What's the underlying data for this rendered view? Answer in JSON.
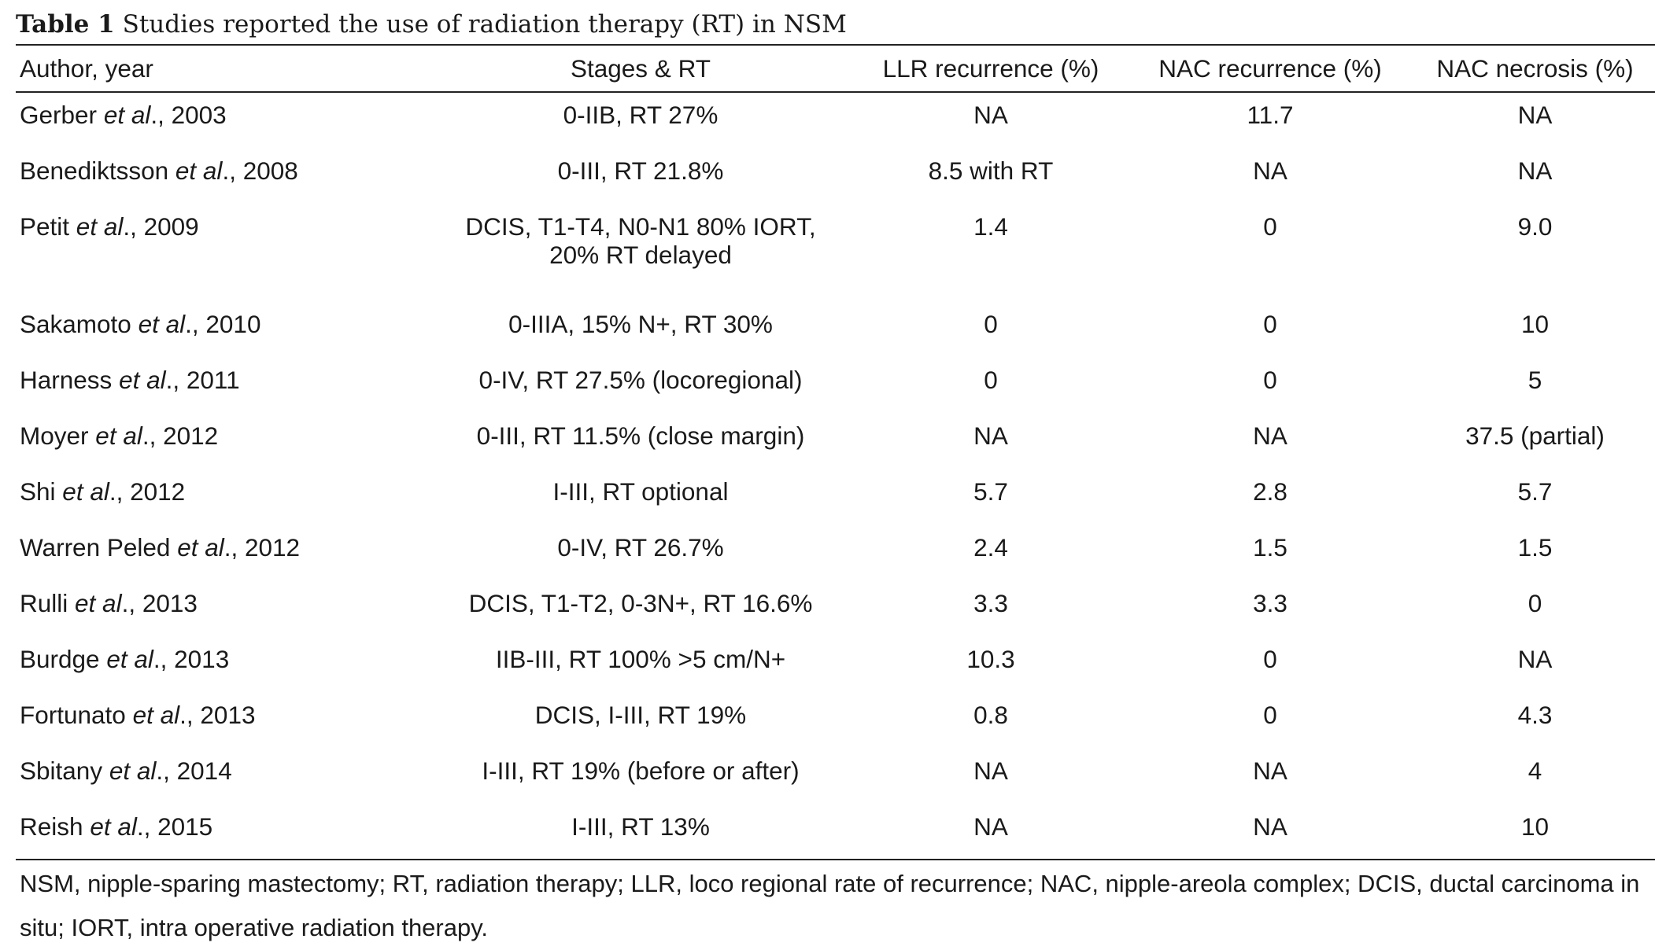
{
  "caption": {
    "label": "Table 1",
    "text": "Studies reported the use of radiation therapy (RT) in NSM"
  },
  "columns": {
    "author": "Author, year",
    "stages": "Stages & RT",
    "llr": "LLR recurrence (%)",
    "nac_recurrence": "NAC recurrence (%)",
    "nac_necrosis": "NAC necrosis (%)"
  },
  "rows": [
    {
      "author": "Gerber",
      "etal": "et al",
      "year": "., 2003",
      "stages": [
        "0-IIB, RT 27%"
      ],
      "llr": "NA",
      "nac_recurrence": "11.7",
      "nac_necrosis": "NA"
    },
    {
      "author": "Benediktsson",
      "etal": "et al",
      "year": "., 2008",
      "stages": [
        "0-III, RT 21.8%"
      ],
      "llr": "8.5 with RT",
      "nac_recurrence": "NA",
      "nac_necrosis": "NA"
    },
    {
      "author": "Petit",
      "etal": "et al",
      "year": "., 2009",
      "stages": [
        "DCIS, T1-T4, N0-N1 80% IORT,",
        "20% RT delayed"
      ],
      "llr": "1.4",
      "nac_recurrence": "0",
      "nac_necrosis": "9.0"
    },
    {
      "author": "Sakamoto",
      "etal": "et al",
      "year": "., 2010",
      "stages": [
        "0-IIIA, 15% N+, RT 30%"
      ],
      "llr": "0",
      "nac_recurrence": "0",
      "nac_necrosis": "10"
    },
    {
      "author": "Harness",
      "etal": "et al",
      "year": "., 2011",
      "stages": [
        "0-IV, RT 27.5% (locoregional)"
      ],
      "llr": "0",
      "nac_recurrence": "0",
      "nac_necrosis": "5"
    },
    {
      "author": "Moyer",
      "etal": "et al",
      "year": "., 2012",
      "stages": [
        "0-III, RT 11.5% (close margin)"
      ],
      "llr": "NA",
      "nac_recurrence": "NA",
      "nac_necrosis": "37.5 (partial)"
    },
    {
      "author": "Shi",
      "etal": "et al",
      "year": "., 2012",
      "stages": [
        "I-III, RT optional"
      ],
      "llr": "5.7",
      "nac_recurrence": "2.8",
      "nac_necrosis": "5.7"
    },
    {
      "author": "Warren Peled",
      "etal": "et al",
      "year": "., 2012",
      "stages": [
        "0-IV, RT 26.7%"
      ],
      "llr": "2.4",
      "nac_recurrence": "1.5",
      "nac_necrosis": "1.5"
    },
    {
      "author": "Rulli",
      "etal": "et al",
      "year": "., 2013",
      "stages": [
        "DCIS, T1-T2, 0-3N+, RT 16.6%"
      ],
      "llr": "3.3",
      "nac_recurrence": "3.3",
      "nac_necrosis": "0"
    },
    {
      "author": "Burdge",
      "etal": "et al",
      "year": "., 2013",
      "stages": [
        "IIB-III, RT 100% >5 cm/N+"
      ],
      "llr": "10.3",
      "nac_recurrence": "0",
      "nac_necrosis": "NA"
    },
    {
      "author": "Fortunato",
      "etal": "et al",
      "year": "., 2013",
      "stages": [
        "DCIS, I-III, RT 19%"
      ],
      "llr": "0.8",
      "nac_recurrence": "0",
      "nac_necrosis": "4.3"
    },
    {
      "author": "Sbitany",
      "etal": "et al",
      "year": "., 2014",
      "stages": [
        "I-III, RT 19% (before or after)"
      ],
      "llr": "NA",
      "nac_recurrence": "NA",
      "nac_necrosis": "4"
    },
    {
      "author": "Reish",
      "etal": "et al",
      "year": "., 2015",
      "stages": [
        "I-III, RT 13%"
      ],
      "llr": "NA",
      "nac_recurrence": "NA",
      "nac_necrosis": "10"
    }
  ],
  "footnote": "NSM, nipple-sparing mastectomy; RT, radiation therapy; LLR, loco regional rate of recurrence; NAC, nipple-areola complex; DCIS, ductal carcinoma in situ; IORT, intra operative radiation therapy."
}
